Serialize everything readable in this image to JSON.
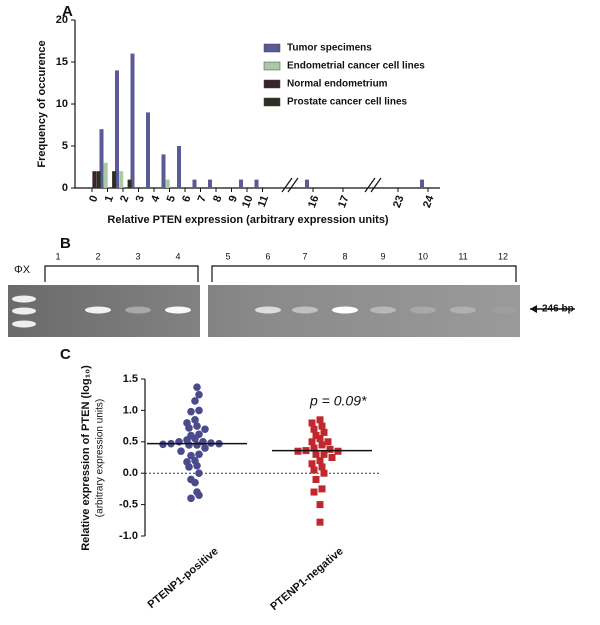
{
  "chart_data": [
    {
      "type": "bar",
      "panel_label": "A",
      "x_label": "Relative PTEN expression (arbitrary expression units)",
      "y_label": "Frequency of occurence",
      "categories": [
        "0",
        "1",
        "2",
        "3",
        "4",
        "5",
        "6",
        "7",
        "8",
        "9",
        "10",
        "11",
        "16",
        "17",
        "23",
        "24"
      ],
      "series": [
        {
          "name": "Tumor specimens",
          "color": "#5a5a96",
          "values": [
            0,
            7,
            14,
            16,
            9,
            4,
            5,
            1,
            1,
            0,
            1,
            1,
            1,
            0,
            0,
            1
          ]
        },
        {
          "name": "Endometrial cancer cell lines",
          "color": "#a9c9a4",
          "values": [
            0,
            3,
            2,
            0,
            0,
            1,
            0,
            0,
            0,
            0,
            0,
            0,
            0,
            0,
            0,
            0
          ]
        },
        {
          "name": "Normal endometrium",
          "color": "#3a2226",
          "values": [
            2,
            0,
            0,
            0,
            0,
            0,
            0,
            0,
            0,
            0,
            0,
            0,
            0,
            0,
            0,
            0
          ]
        },
        {
          "name": "Prostate cancer cell lines",
          "color": "#2e2e22",
          "values": [
            2,
            2,
            1,
            0,
            0,
            0,
            0,
            0,
            0,
            0,
            0,
            0,
            0,
            0,
            0,
            0
          ]
        }
      ],
      "ylim": [
        0,
        20
      ],
      "yticks": [
        0,
        5,
        10,
        15,
        20
      ]
    },
    {
      "type": "strip",
      "panel_label": "C",
      "y_label": "Relative expression of PTEN (log₁₀)",
      "y_sublabel": "(arbitrary expression units)",
      "annotation": "p = 0.09*",
      "categories": [
        "PTENP1-positive",
        "PTENP1-negative"
      ],
      "series": [
        {
          "name": "PTENP1-positive",
          "color": "#4a4a8c",
          "marker": "circle",
          "values": [
            1.37,
            1.25,
            1.15,
            1.0,
            0.98,
            0.85,
            0.8,
            0.75,
            0.72,
            0.7,
            0.62,
            0.6,
            0.55,
            0.53,
            0.5,
            0.5,
            0.48,
            0.47,
            0.47,
            0.46,
            0.45,
            0.45,
            0.4,
            0.35,
            0.3,
            0.28,
            0.2,
            0.18,
            0.12,
            0.1,
            0.0,
            -0.1,
            -0.15,
            -0.3,
            -0.35,
            -0.4
          ]
        },
        {
          "name": "PTENP1-negative",
          "color": "#c0282d",
          "marker": "square",
          "values": [
            0.85,
            0.8,
            0.75,
            0.7,
            0.65,
            0.6,
            0.55,
            0.5,
            0.5,
            0.45,
            0.4,
            0.38,
            0.36,
            0.35,
            0.35,
            0.3,
            0.3,
            0.25,
            0.2,
            0.15,
            0.1,
            0.05,
            0.0,
            -0.1,
            -0.25,
            -0.3,
            -0.5,
            -0.78
          ]
        }
      ],
      "medians": [
        0.47,
        0.36
      ],
      "reference_line": 0,
      "ylim": [
        -1,
        1.5
      ],
      "yticks": [
        {
          "value": -1,
          "label": "-1.0"
        },
        {
          "value": -0.5,
          "label": "-0.5"
        },
        {
          "value": 0,
          "label": "0.0"
        },
        {
          "value": 0.5,
          "label": "0.5"
        },
        {
          "value": 1,
          "label": "1.0"
        },
        {
          "value": 1.5,
          "label": "1.5"
        }
      ]
    }
  ],
  "gel": {
    "panel_label": "B",
    "marker_label": "ΦX",
    "band_label": "246 bp",
    "lanes": [
      "1",
      "2",
      "3",
      "4",
      "5",
      "6",
      "7",
      "8",
      "9",
      "10",
      "11",
      "12"
    ],
    "band_intensity": [
      0,
      0.9,
      0.35,
      0.95,
      0,
      0.7,
      0.45,
      1,
      0.35,
      0.2,
      0.25,
      0.05
    ]
  }
}
